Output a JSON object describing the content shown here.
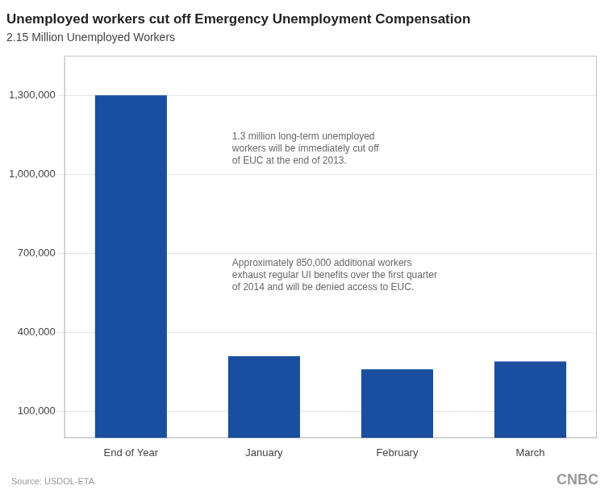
{
  "chart_data": {
    "type": "bar",
    "title": "Unemployed workers cut off Emergency Unemployment Compensation",
    "subtitle": "2.15 Million Unemployed Workers",
    "categories": [
      "End of Year",
      "January",
      "February",
      "March"
    ],
    "values": [
      1300000,
      310000,
      260000,
      290000
    ],
    "color": "#1a4f9f",
    "ylim": [
      0,
      1450000
    ],
    "yticks": [
      {
        "value": 100000,
        "label": "100,000"
      },
      {
        "value": 400000,
        "label": "400,000"
      },
      {
        "value": 700000,
        "label": "700,000"
      },
      {
        "value": 1000000,
        "label": "1,000,000"
      },
      {
        "value": 1300000,
        "label": "1,300,000"
      }
    ],
    "grid": true,
    "annotations": [
      "1.3 million long-term unemployed\nworkers will be immediately cut off\nof EUC at the end of 2013.",
      "Approximately 850,000 additional workers\nexhaust regular UI benefits over the first quarter\nof 2014 and will be denied access to EUC.",
      "Source: USDOL-ETA",
      "CNBC"
    ]
  }
}
